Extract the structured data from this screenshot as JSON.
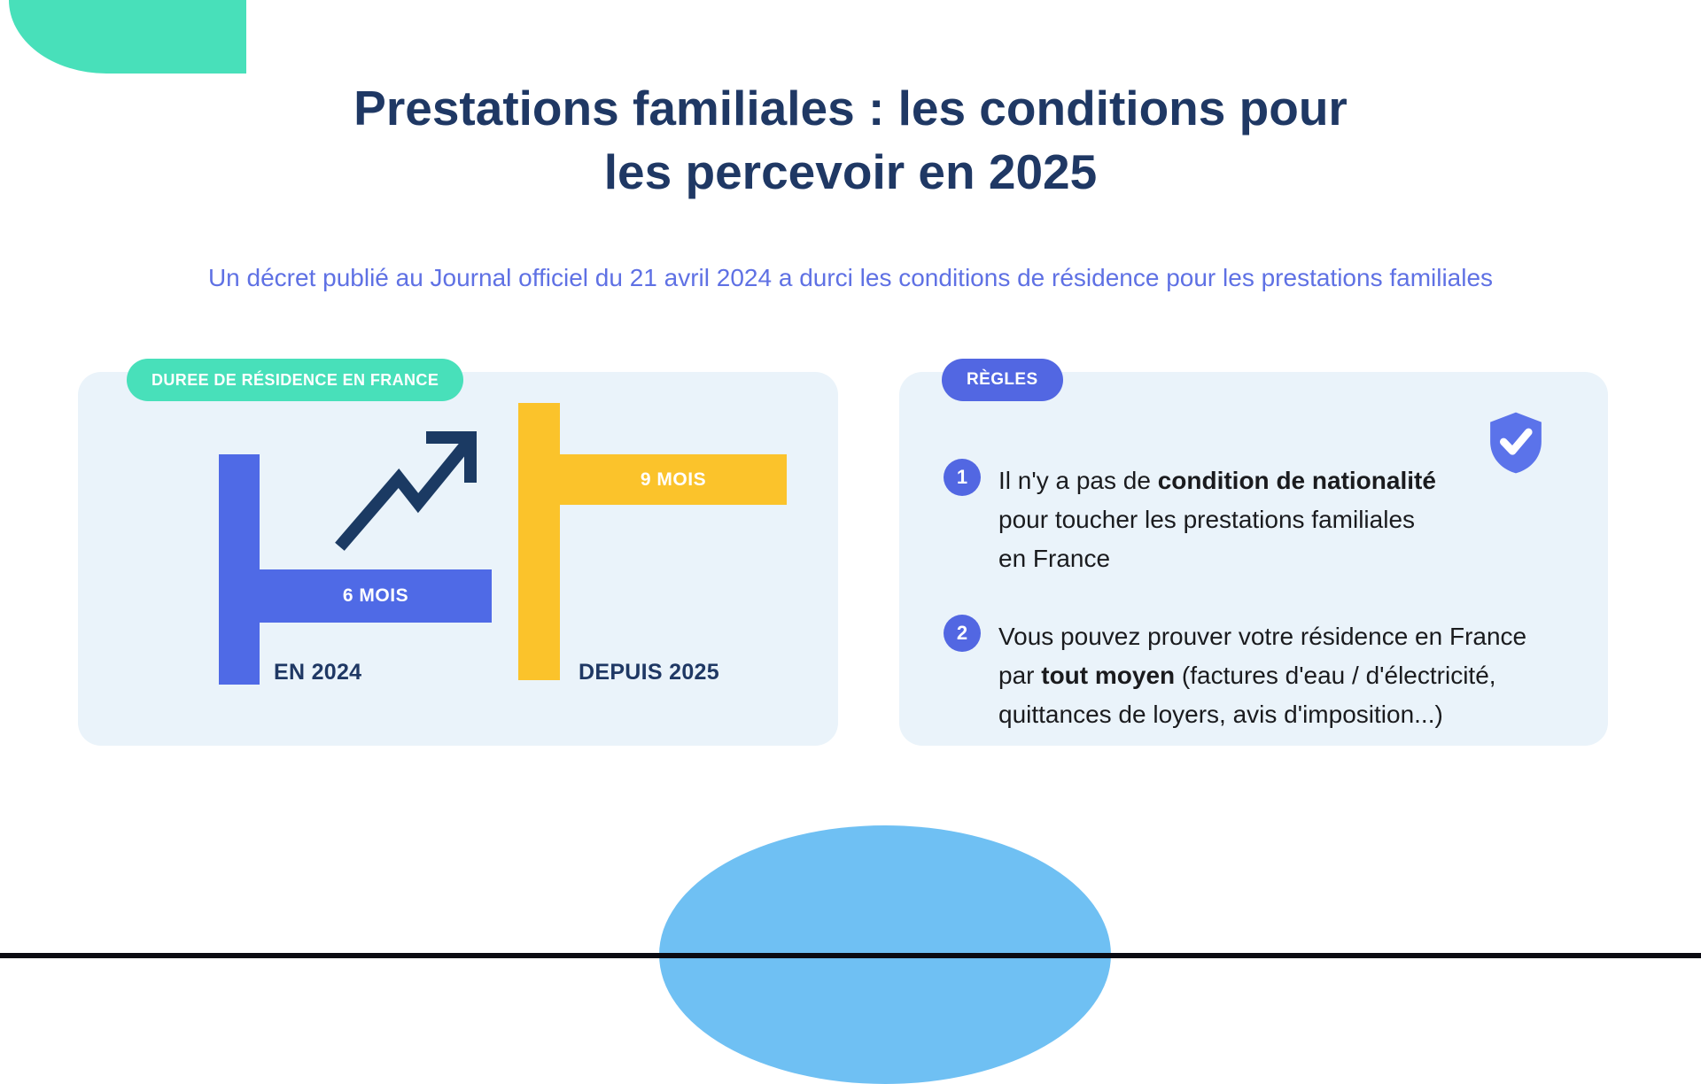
{
  "page": {
    "title": [
      "Prestations familiales : les conditions pour",
      "les percevoir en 2025"
    ],
    "subtitle": "Un décret publié au Journal officiel du 21 avril 2024 a durci les conditions de résidence pour les prestations familiales"
  },
  "colors": {
    "navy": "#1F3864",
    "periwinkle_text": "#5F71E4",
    "indigo": "#5267E2",
    "bar_blue": "#4F6AE6",
    "bar_yellow": "#FBC32B",
    "teal": "#48E0BA",
    "card_bg": "#EAF3FA",
    "sky_circle": "#6FC0F3",
    "body_text": "#1A1B1E"
  },
  "residence_card": {
    "badge": "DUREE DE RÉSIDENCE EN FRANCE",
    "bars": [
      {
        "value_label": "6 MOIS",
        "year_label": "EN 2024",
        "color": "#4F6AE6"
      },
      {
        "value_label": "9 MOIS",
        "year_label": "DEPUIS 2025",
        "color": "#FBC32B"
      }
    ]
  },
  "rules_card": {
    "badge": "RÈGLES",
    "items": [
      {
        "number": "1",
        "lines": [
          [
            {
              "t": "Il n'y a pas de "
            },
            {
              "t": "condition de nationalité",
              "b": true
            }
          ],
          [
            {
              "t": "pour toucher les prestations familiales"
            }
          ],
          [
            {
              "t": "en France"
            }
          ]
        ]
      },
      {
        "number": "2",
        "lines": [
          [
            {
              "t": "Vous pouvez prouver votre résidence en France"
            }
          ],
          [
            {
              "t": "par "
            },
            {
              "t": "tout moyen",
              "b": true
            },
            {
              "t": " (factures d'eau / d'électricité,"
            }
          ],
          [
            {
              "t": "quittances de loyers, avis d'imposition...)"
            }
          ]
        ]
      }
    ]
  },
  "chart_data": {
    "type": "bar",
    "title": "DUREE DE RÉSIDENCE EN FRANCE",
    "categories": [
      "EN 2024",
      "DEPUIS 2025"
    ],
    "values": [
      6,
      9
    ],
    "unit": "mois",
    "value_labels": [
      "6 MOIS",
      "9 MOIS"
    ],
    "colors": [
      "#4F6AE6",
      "#FBC32B"
    ],
    "annotation": "upward trend arrow between bars",
    "legend": "none",
    "grid": false
  }
}
